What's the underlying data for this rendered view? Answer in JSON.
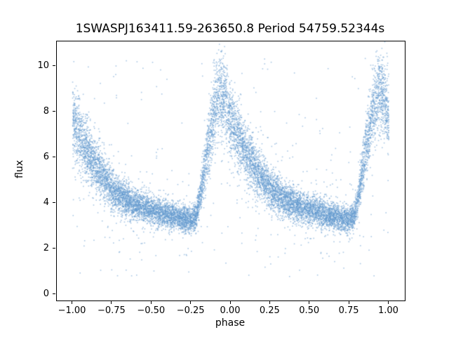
{
  "chart_data": {
    "type": "scatter",
    "title": "1SWASPJ163411.59-263650.8 Period 54759.52344s",
    "xlabel": "phase",
    "ylabel": "flux",
    "xlim": [
      -1.1,
      1.1
    ],
    "ylim": [
      -0.25,
      11.1
    ],
    "grid": false,
    "legend": "none",
    "marker_color": "#6399cd",
    "marker_alpha": 0.55,
    "marker_size": 1.6,
    "n_points": 12000,
    "n_outliers": 220,
    "x_ticks": [
      {
        "value": -1.0,
        "label": "−1.00"
      },
      {
        "value": -0.75,
        "label": "−0.75"
      },
      {
        "value": -0.5,
        "label": "−0.50"
      },
      {
        "value": -0.25,
        "label": "−0.25"
      },
      {
        "value": 0.0,
        "label": "0.00"
      },
      {
        "value": 0.25,
        "label": "0.25"
      },
      {
        "value": 0.5,
        "label": "0.50"
      },
      {
        "value": 0.75,
        "label": "0.75"
      },
      {
        "value": 1.0,
        "label": "1.00"
      }
    ],
    "y_ticks": [
      {
        "value": 0,
        "label": "0"
      },
      {
        "value": 2,
        "label": "2"
      },
      {
        "value": 4,
        "label": "4"
      },
      {
        "value": 6,
        "label": "6"
      },
      {
        "value": 8,
        "label": "8"
      },
      {
        "value": 10,
        "label": "10"
      }
    ],
    "mean_curve": {
      "comment_phase_folded": "mean flux vs fractional phase (0-1), sawtooth light curve: slow decline, minimum near phase 0.75, steep rise to peak near phase 0.93",
      "phase": [
        0.0,
        0.05,
        0.1,
        0.15,
        0.2,
        0.25,
        0.3,
        0.35,
        0.4,
        0.45,
        0.5,
        0.55,
        0.6,
        0.65,
        0.7,
        0.75,
        0.78,
        0.81,
        0.84,
        0.87,
        0.9,
        0.93,
        0.96,
        1.0
      ],
      "flux": [
        7.7,
        6.9,
        6.2,
        5.6,
        5.1,
        4.65,
        4.35,
        4.1,
        3.95,
        3.82,
        3.72,
        3.62,
        3.52,
        3.42,
        3.33,
        3.28,
        3.45,
        4.4,
        5.8,
        7.1,
        8.2,
        8.8,
        8.7,
        7.7
      ],
      "flux_peak_observed": 10.6,
      "flux_min_observed": 0.9
    },
    "model": {
      "sigma_base": 0.28,
      "sigma_slope": 0.11,
      "tail_fraction": 0.04,
      "tail_multiplier": 3.0,
      "outlier_flux_min": 0.8,
      "outlier_flux_max": 10.6,
      "seed": 42
    }
  }
}
